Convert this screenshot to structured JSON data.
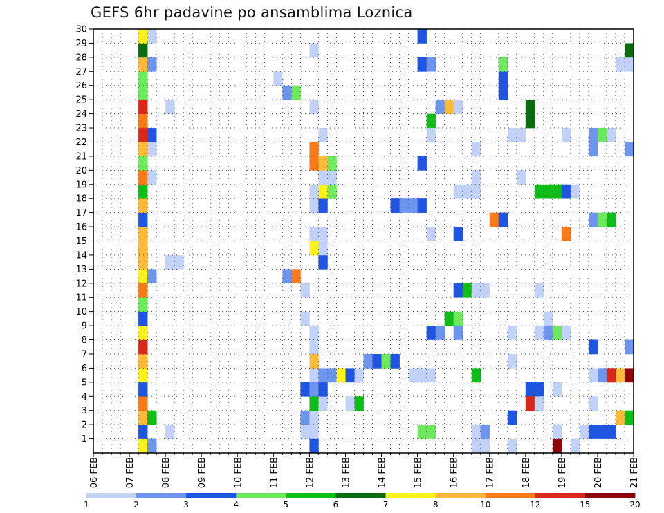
{
  "chart_data": {
    "type": "heatmap",
    "title": "GEFS 6hr padavine po ansamblima Loznica",
    "x_tick_labels": [
      "06 FEB",
      "07 FEB",
      "08 FEB",
      "09 FEB",
      "10 FEB",
      "11 FEB",
      "12 FEB",
      "13 FEB",
      "14 FEB",
      "15 FEB",
      "16 FEB",
      "17 FEB",
      "18 FEB",
      "19 FEB",
      "20 FEB",
      "21 FEB"
    ],
    "x_unit": "6-hour step (0 = 06 FEB 00 UTC, 60 = 21 FEB 00 UTC)",
    "xlim": [
      0,
      60
    ],
    "y_tick_labels": [
      "1",
      "2",
      "3",
      "4",
      "5",
      "6",
      "7",
      "8",
      "9",
      "10",
      "11",
      "12",
      "13",
      "14",
      "15",
      "16",
      "17",
      "18",
      "19",
      "20",
      "21",
      "22",
      "23",
      "24",
      "25",
      "26",
      "27",
      "28",
      "29",
      "30"
    ],
    "ylim": [
      0,
      30
    ],
    "grid": true,
    "colorbar": {
      "colors": [
        "#c1d1f7",
        "#6e95ed",
        "#1f55e0",
        "#6ee85c",
        "#0fbd19",
        "#0a6b0f",
        "#fff21a",
        "#ffba3b",
        "#fa7a1a",
        "#d9281a",
        "#8c0808"
      ],
      "tick_labels": [
        "1",
        "2",
        "3",
        "4",
        "5",
        "6",
        "7",
        "8",
        "10",
        "12",
        "15",
        "20"
      ]
    },
    "cells": [
      [
        5,
        0,
        7
      ],
      [
        5,
        1,
        3
      ],
      [
        5,
        2,
        8
      ],
      [
        5,
        3,
        9
      ],
      [
        5,
        4,
        3
      ],
      [
        5,
        5,
        7
      ],
      [
        5,
        6,
        8
      ],
      [
        5,
        7,
        10
      ],
      [
        5,
        8,
        7
      ],
      [
        5,
        9,
        3
      ],
      [
        5,
        10,
        4
      ],
      [
        5,
        11,
        9
      ],
      [
        5,
        12,
        7
      ],
      [
        5,
        13,
        8
      ],
      [
        5,
        14,
        8
      ],
      [
        5,
        15,
        8
      ],
      [
        5,
        16,
        3
      ],
      [
        5,
        17,
        8
      ],
      [
        5,
        18,
        5
      ],
      [
        5,
        19,
        9
      ],
      [
        5,
        20,
        4
      ],
      [
        5,
        21,
        8
      ],
      [
        5,
        22,
        10
      ],
      [
        5,
        23,
        9
      ],
      [
        5,
        24,
        10
      ],
      [
        5,
        25,
        4
      ],
      [
        5,
        26,
        4
      ],
      [
        5,
        27,
        8
      ],
      [
        5,
        28,
        6
      ],
      [
        5,
        29,
        7
      ],
      [
        6,
        0,
        2
      ],
      [
        6,
        2,
        5
      ],
      [
        6,
        12,
        2
      ],
      [
        6,
        19,
        1
      ],
      [
        6,
        21,
        1
      ],
      [
        6,
        22,
        3
      ],
      [
        6,
        27,
        2
      ],
      [
        6,
        29,
        1
      ],
      [
        8,
        1,
        1
      ],
      [
        8,
        13,
        1
      ],
      [
        9,
        13,
        1
      ],
      [
        8,
        24,
        1
      ],
      [
        20,
        26,
        1
      ],
      [
        21,
        25,
        2
      ],
      [
        21,
        12,
        2
      ],
      [
        22,
        12,
        9
      ],
      [
        22,
        25,
        4
      ],
      [
        23,
        1,
        1
      ],
      [
        23,
        2,
        2
      ],
      [
        23,
        4,
        3
      ],
      [
        23,
        9,
        1
      ],
      [
        23,
        11,
        1
      ],
      [
        24,
        0,
        3
      ],
      [
        24,
        1,
        1
      ],
      [
        24,
        2,
        1
      ],
      [
        24,
        3,
        5
      ],
      [
        24,
        4,
        2
      ],
      [
        24,
        5,
        1
      ],
      [
        24,
        6,
        8
      ],
      [
        24,
        7,
        1
      ],
      [
        24,
        8,
        1
      ],
      [
        24,
        14,
        7
      ],
      [
        24,
        15,
        1
      ],
      [
        24,
        17,
        1
      ],
      [
        24,
        18,
        1
      ],
      [
        24,
        20,
        9
      ],
      [
        24,
        21,
        9
      ],
      [
        24,
        24,
        1
      ],
      [
        24,
        28,
        1
      ],
      [
        25,
        3,
        1
      ],
      [
        25,
        4,
        3
      ],
      [
        25,
        5,
        2
      ],
      [
        25,
        13,
        3
      ],
      [
        25,
        14,
        1
      ],
      [
        25,
        15,
        1
      ],
      [
        25,
        17,
        3
      ],
      [
        25,
        18,
        7
      ],
      [
        25,
        19,
        1
      ],
      [
        25,
        20,
        8
      ],
      [
        25,
        22,
        1
      ],
      [
        26,
        5,
        2
      ],
      [
        26,
        18,
        4
      ],
      [
        26,
        19,
        1
      ],
      [
        26,
        20,
        4
      ],
      [
        27,
        5,
        7
      ],
      [
        28,
        3,
        1
      ],
      [
        28,
        5,
        3
      ],
      [
        29,
        3,
        5
      ],
      [
        29,
        5,
        1
      ],
      [
        30,
        6,
        2
      ],
      [
        31,
        6,
        3
      ],
      [
        32,
        6,
        4
      ],
      [
        33,
        6,
        3
      ],
      [
        33,
        17,
        3
      ],
      [
        34,
        17,
        2
      ],
      [
        35,
        17,
        2
      ],
      [
        36,
        17,
        3
      ],
      [
        36,
        1,
        4
      ],
      [
        37,
        1,
        4
      ],
      [
        35,
        5,
        1
      ],
      [
        36,
        5,
        1
      ],
      [
        37,
        5,
        1
      ],
      [
        36,
        29,
        3
      ],
      [
        36,
        27,
        3
      ],
      [
        37,
        27,
        2
      ],
      [
        37,
        23,
        5
      ],
      [
        37,
        22,
        1
      ],
      [
        36,
        20,
        3
      ],
      [
        37,
        15,
        1
      ],
      [
        37,
        8,
        3
      ],
      [
        38,
        8,
        2
      ],
      [
        38,
        24,
        2
      ],
      [
        39,
        24,
        8
      ],
      [
        40,
        24,
        1
      ],
      [
        39,
        9,
        5
      ],
      [
        40,
        9,
        4
      ],
      [
        40,
        15,
        3
      ],
      [
        40,
        11,
        3
      ],
      [
        41,
        11,
        5
      ],
      [
        40,
        8,
        2
      ],
      [
        40,
        18,
        1
      ],
      [
        41,
        18,
        1
      ],
      [
        42,
        18,
        1
      ],
      [
        42,
        19,
        1
      ],
      [
        42,
        21,
        1
      ],
      [
        42,
        1,
        4
      ],
      [
        42,
        11,
        1
      ],
      [
        43,
        11,
        1
      ],
      [
        42,
        0,
        1
      ],
      [
        43,
        0,
        1
      ],
      [
        42,
        1,
        1
      ],
      [
        43,
        1,
        2
      ],
      [
        42,
        5,
        5
      ],
      [
        44,
        16,
        9
      ],
      [
        45,
        16,
        3
      ],
      [
        45,
        26,
        3
      ],
      [
        45,
        27,
        2
      ],
      [
        45,
        25,
        3
      ],
      [
        45,
        27,
        4
      ],
      [
        46,
        2,
        3
      ],
      [
        46,
        0,
        1
      ],
      [
        46,
        6,
        1
      ],
      [
        46,
        8,
        1
      ],
      [
        46,
        22,
        1
      ],
      [
        47,
        22,
        1
      ],
      [
        47,
        19,
        1
      ],
      [
        48,
        4,
        3
      ],
      [
        49,
        4,
        3
      ],
      [
        48,
        3,
        10
      ],
      [
        49,
        3,
        1
      ],
      [
        48,
        23,
        6
      ],
      [
        48,
        24,
        6
      ],
      [
        49,
        8,
        1
      ],
      [
        49,
        11,
        1
      ],
      [
        49,
        18,
        5
      ],
      [
        50,
        18,
        5
      ],
      [
        51,
        18,
        4
      ],
      [
        51,
        18,
        5
      ],
      [
        52,
        18,
        3
      ],
      [
        53,
        18,
        1
      ],
      [
        50,
        8,
        2
      ],
      [
        51,
        8,
        1
      ],
      [
        51,
        8,
        4
      ],
      [
        52,
        8,
        1
      ],
      [
        50,
        9,
        1
      ],
      [
        51,
        0,
        11
      ],
      [
        51,
        4,
        1
      ],
      [
        52,
        15,
        9
      ],
      [
        52,
        22,
        1
      ],
      [
        53,
        0,
        1
      ],
      [
        51,
        1,
        1
      ],
      [
        54,
        1,
        1
      ],
      [
        55,
        1,
        3
      ],
      [
        56,
        1,
        3
      ],
      [
        57,
        1,
        3
      ],
      [
        55,
        7,
        3
      ],
      [
        55,
        16,
        2
      ],
      [
        56,
        16,
        4
      ],
      [
        57,
        16,
        5
      ],
      [
        55,
        21,
        2
      ],
      [
        55,
        22,
        2
      ],
      [
        56,
        22,
        4
      ],
      [
        57,
        22,
        1
      ],
      [
        56,
        5,
        2
      ],
      [
        57,
        5,
        10
      ],
      [
        58,
        5,
        8
      ],
      [
        59,
        5,
        11
      ],
      [
        55,
        3,
        1
      ],
      [
        58,
        2,
        8
      ],
      [
        59,
        2,
        5
      ],
      [
        58,
        27,
        1
      ],
      [
        59,
        27,
        1
      ],
      [
        59,
        28,
        6
      ],
      [
        59,
        21,
        2
      ],
      [
        59,
        7,
        8
      ],
      [
        59,
        7,
        2
      ],
      [
        55,
        5,
        1
      ],
      [
        57,
        5,
        10
      ]
    ]
  }
}
